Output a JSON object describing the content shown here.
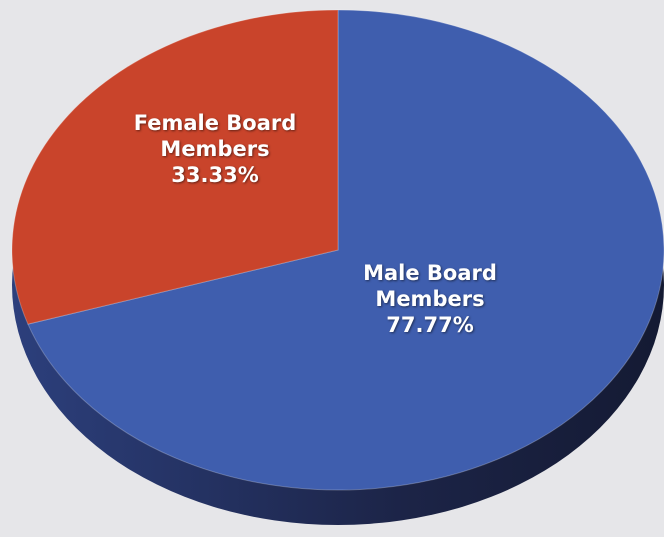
{
  "chart_data": {
    "type": "pie",
    "categories": [
      "Male Board Members",
      "Female Board Members"
    ],
    "values": [
      77.77,
      33.33
    ],
    "value_labels": [
      "77.77%",
      "33.33%"
    ],
    "colors": [
      "#3f5eae",
      "#c9442b"
    ]
  }
}
